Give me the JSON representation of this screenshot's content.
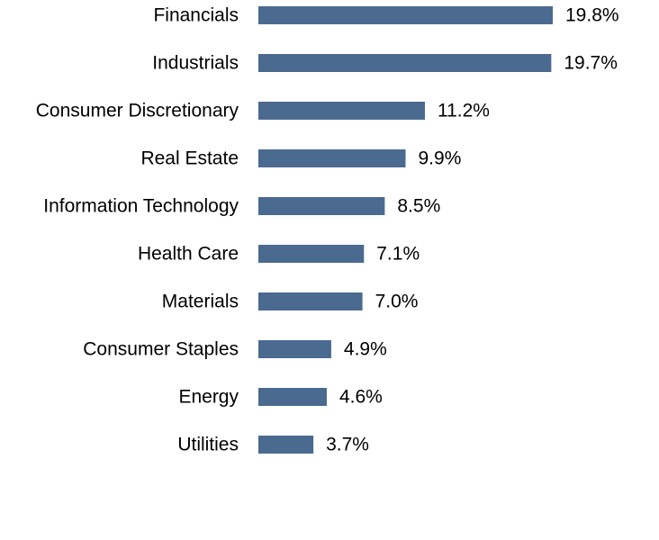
{
  "chart_data": {
    "type": "bar",
    "orientation": "horizontal",
    "title": "",
    "xlabel": "",
    "ylabel": "",
    "categories": [
      "Financials",
      "Industrials",
      "Consumer Discretionary",
      "Real Estate",
      "Information Technology",
      "Health Care",
      "Materials",
      "Consumer Staples",
      "Energy",
      "Utilities"
    ],
    "values": [
      19.8,
      19.7,
      11.2,
      9.9,
      8.5,
      7.1,
      7.0,
      4.9,
      4.6,
      3.7
    ],
    "value_labels": [
      "19.8%",
      "19.7%",
      "11.2%",
      "9.9%",
      "8.5%",
      "7.1%",
      "7.0%",
      "4.9%",
      "4.6%",
      "3.7%"
    ],
    "xlim": [
      0,
      19.8
    ],
    "grid": false,
    "legend": "none",
    "bar_color": "#4a6a90"
  }
}
